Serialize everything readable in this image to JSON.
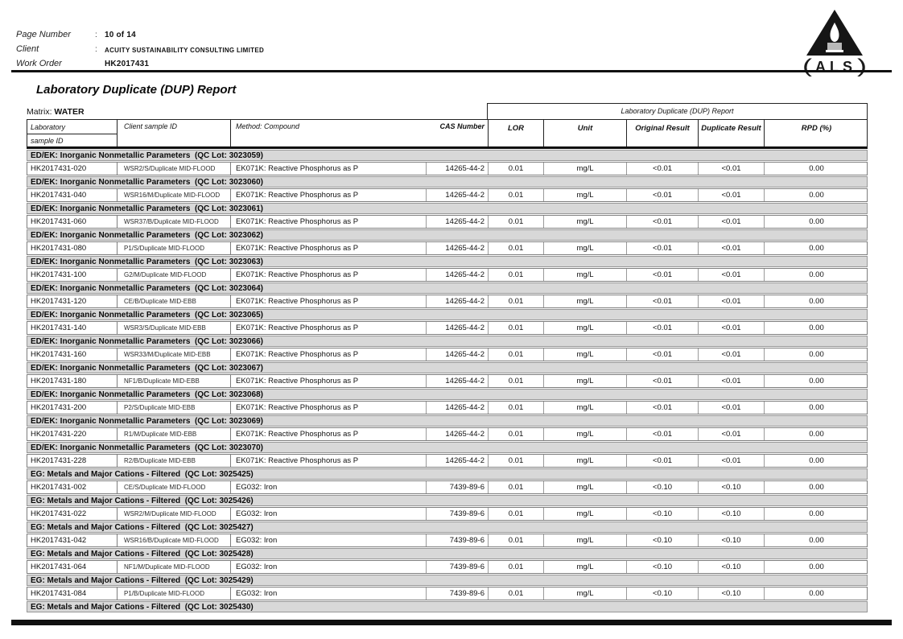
{
  "page": {
    "header": {
      "separator": ":",
      "fields": [
        {
          "label": "Page Number",
          "value": "10 of 14"
        },
        {
          "label": "Client",
          "value": "ACUITY SUSTAINABILITY CONSULTING LIMITED"
        },
        {
          "label": "Work Order",
          "value": "HK2017431"
        }
      ],
      "logo": {
        "text": "ALS",
        "paren_open": "(",
        "paren_close": ")"
      }
    },
    "title": "Laboratory Duplicate (DUP) Report",
    "matrix": {
      "label": "Matrix:",
      "value": "WATER"
    }
  },
  "table": {
    "span_header": "Laboratory Duplicate (DUP) Report",
    "headers": {
      "lab_line1": "Laboratory",
      "lab_line2": "sample ID",
      "client": "Client sample ID",
      "method": "Method: Compound",
      "cas": "CAS Number",
      "lor": "LOR",
      "unit": "Unit",
      "original": "Original Result",
      "duplicate": "Duplicate Result",
      "rpd": "RPD (%)"
    },
    "groups": [
      {
        "section": "ED/EK: Inorganic Nonmetallic Parameters  (QC Lot: 3023059)",
        "rows": [
          {
            "lab_id": "HK2017431-020",
            "client_id": "WSR2/S/Duplicate MID-FLOOD",
            "method": "EK071K: Reactive Phosphorus as P",
            "cas": "14265-44-2",
            "lor": "0.01",
            "unit": "mg/L",
            "original": "<0.01",
            "duplicate": "<0.01",
            "rpd": "0.00"
          }
        ]
      },
      {
        "section": "ED/EK: Inorganic Nonmetallic Parameters  (QC Lot: 3023060)",
        "rows": [
          {
            "lab_id": "HK2017431-040",
            "client_id": "WSR16/M/Duplicate MID-FLOOD",
            "method": "EK071K: Reactive Phosphorus as P",
            "cas": "14265-44-2",
            "lor": "0.01",
            "unit": "mg/L",
            "original": "<0.01",
            "duplicate": "<0.01",
            "rpd": "0.00"
          }
        ]
      },
      {
        "section": "ED/EK: Inorganic Nonmetallic Parameters  (QC Lot: 3023061)",
        "rows": [
          {
            "lab_id": "HK2017431-060",
            "client_id": "WSR37/B/Duplicate MID-FLOOD",
            "method": "EK071K: Reactive Phosphorus as P",
            "cas": "14265-44-2",
            "lor": "0.01",
            "unit": "mg/L",
            "original": "<0.01",
            "duplicate": "<0.01",
            "rpd": "0.00"
          }
        ]
      },
      {
        "section": "ED/EK: Inorganic Nonmetallic Parameters  (QC Lot: 3023062)",
        "rows": [
          {
            "lab_id": "HK2017431-080",
            "client_id": "P1/S/Duplicate MID-FLOOD",
            "method": "EK071K: Reactive Phosphorus as P",
            "cas": "14265-44-2",
            "lor": "0.01",
            "unit": "mg/L",
            "original": "<0.01",
            "duplicate": "<0.01",
            "rpd": "0.00"
          }
        ]
      },
      {
        "section": "ED/EK: Inorganic Nonmetallic Parameters  (QC Lot: 3023063)",
        "rows": [
          {
            "lab_id": "HK2017431-100",
            "client_id": "G2/M/Duplicate MID-FLOOD",
            "method": "EK071K: Reactive Phosphorus as P",
            "cas": "14265-44-2",
            "lor": "0.01",
            "unit": "mg/L",
            "original": "<0.01",
            "duplicate": "<0.01",
            "rpd": "0.00"
          }
        ]
      },
      {
        "section": "ED/EK: Inorganic Nonmetallic Parameters  (QC Lot: 3023064)",
        "rows": [
          {
            "lab_id": "HK2017431-120",
            "client_id": "CE/B/Duplicate MID-EBB",
            "method": "EK071K: Reactive Phosphorus as P",
            "cas": "14265-44-2",
            "lor": "0.01",
            "unit": "mg/L",
            "original": "<0.01",
            "duplicate": "<0.01",
            "rpd": "0.00"
          }
        ]
      },
      {
        "section": "ED/EK: Inorganic Nonmetallic Parameters  (QC Lot: 3023065)",
        "rows": [
          {
            "lab_id": "HK2017431-140",
            "client_id": "WSR3/S/Duplicate MID-EBB",
            "method": "EK071K: Reactive Phosphorus as P",
            "cas": "14265-44-2",
            "lor": "0.01",
            "unit": "mg/L",
            "original": "<0.01",
            "duplicate": "<0.01",
            "rpd": "0.00"
          }
        ]
      },
      {
        "section": "ED/EK: Inorganic Nonmetallic Parameters  (QC Lot: 3023066)",
        "rows": [
          {
            "lab_id": "HK2017431-160",
            "client_id": "WSR33/M/Duplicate MID-EBB",
            "method": "EK071K: Reactive Phosphorus as P",
            "cas": "14265-44-2",
            "lor": "0.01",
            "unit": "mg/L",
            "original": "<0.01",
            "duplicate": "<0.01",
            "rpd": "0.00"
          }
        ]
      },
      {
        "section": "ED/EK: Inorganic Nonmetallic Parameters  (QC Lot: 3023067)",
        "rows": [
          {
            "lab_id": "HK2017431-180",
            "client_id": "NF1/B/Duplicate MID-EBB",
            "method": "EK071K: Reactive Phosphorus as P",
            "cas": "14265-44-2",
            "lor": "0.01",
            "unit": "mg/L",
            "original": "<0.01",
            "duplicate": "<0.01",
            "rpd": "0.00"
          }
        ]
      },
      {
        "section": "ED/EK: Inorganic Nonmetallic Parameters  (QC Lot: 3023068)",
        "rows": [
          {
            "lab_id": "HK2017431-200",
            "client_id": "P2/S/Duplicate MID-EBB",
            "method": "EK071K: Reactive Phosphorus as P",
            "cas": "14265-44-2",
            "lor": "0.01",
            "unit": "mg/L",
            "original": "<0.01",
            "duplicate": "<0.01",
            "rpd": "0.00"
          }
        ]
      },
      {
        "section": "ED/EK: Inorganic Nonmetallic Parameters  (QC Lot: 3023069)",
        "rows": [
          {
            "lab_id": "HK2017431-220",
            "client_id": "R1/M/Duplicate MID-EBB",
            "method": "EK071K: Reactive Phosphorus as P",
            "cas": "14265-44-2",
            "lor": "0.01",
            "unit": "mg/L",
            "original": "<0.01",
            "duplicate": "<0.01",
            "rpd": "0.00"
          }
        ]
      },
      {
        "section": "ED/EK: Inorganic Nonmetallic Parameters  (QC Lot: 3023070)",
        "rows": [
          {
            "lab_id": "HK2017431-228",
            "client_id": "R2/B/Duplicate MID-EBB",
            "method": "EK071K: Reactive Phosphorus as P",
            "cas": "14265-44-2",
            "lor": "0.01",
            "unit": "mg/L",
            "original": "<0.01",
            "duplicate": "<0.01",
            "rpd": "0.00"
          }
        ]
      },
      {
        "section": "EG: Metals and Major Cations - Filtered  (QC Lot: 3025425)",
        "rows": [
          {
            "lab_id": "HK2017431-002",
            "client_id": "CE/S/Duplicate MID-FLOOD",
            "method": "EG032: Iron",
            "cas": "7439-89-6",
            "lor": "0.01",
            "unit": "mg/L",
            "original": "<0.10",
            "duplicate": "<0.10",
            "rpd": "0.00"
          }
        ]
      },
      {
        "section": "EG: Metals and Major Cations - Filtered  (QC Lot: 3025426)",
        "rows": [
          {
            "lab_id": "HK2017431-022",
            "client_id": "WSR2/M/Duplicate MID-FLOOD",
            "method": "EG032: Iron",
            "cas": "7439-89-6",
            "lor": "0.01",
            "unit": "mg/L",
            "original": "<0.10",
            "duplicate": "<0.10",
            "rpd": "0.00"
          }
        ]
      },
      {
        "section": "EG: Metals and Major Cations - Filtered  (QC Lot: 3025427)",
        "rows": [
          {
            "lab_id": "HK2017431-042",
            "client_id": "WSR16/B/Duplicate MID-FLOOD",
            "method": "EG032: Iron",
            "cas": "7439-89-6",
            "lor": "0.01",
            "unit": "mg/L",
            "original": "<0.10",
            "duplicate": "<0.10",
            "rpd": "0.00"
          }
        ]
      },
      {
        "section": "EG: Metals and Major Cations - Filtered  (QC Lot: 3025428)",
        "rows": [
          {
            "lab_id": "HK2017431-064",
            "client_id": "NF1/M/Duplicate MID-FLOOD",
            "method": "EG032: Iron",
            "cas": "7439-89-6",
            "lor": "0.01",
            "unit": "mg/L",
            "original": "<0.10",
            "duplicate": "<0.10",
            "rpd": "0.00"
          }
        ]
      },
      {
        "section": "EG: Metals and Major Cations - Filtered  (QC Lot: 3025429)",
        "rows": [
          {
            "lab_id": "HK2017431-084",
            "client_id": "P1/B/Duplicate MID-FLOOD",
            "method": "EG032: Iron",
            "cas": "7439-89-6",
            "lor": "0.01",
            "unit": "mg/L",
            "original": "<0.10",
            "duplicate": "<0.10",
            "rpd": "0.00"
          }
        ]
      },
      {
        "section": "EG: Metals and Major Cations - Filtered  (QC Lot: 3025430)",
        "rows": []
      }
    ]
  }
}
